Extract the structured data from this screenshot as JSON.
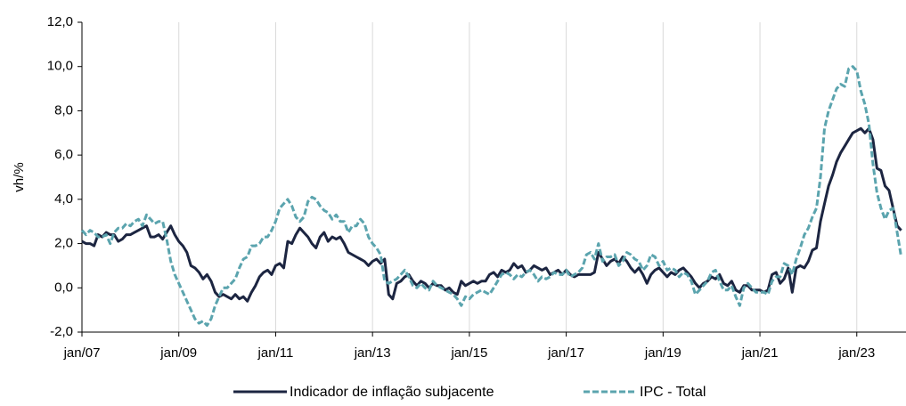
{
  "chart_data": {
    "type": "line",
    "y_label": "vh/%",
    "categories": [
      "jan/07",
      null,
      null,
      null,
      null,
      null,
      null,
      null,
      null,
      null,
      null,
      null,
      null,
      null,
      null,
      null,
      null,
      null,
      null,
      null,
      null,
      null,
      null,
      null,
      "jan/09",
      null,
      null,
      null,
      null,
      null,
      null,
      null,
      null,
      null,
      null,
      null,
      null,
      null,
      null,
      null,
      null,
      null,
      null,
      null,
      null,
      null,
      null,
      null,
      "jan/11",
      null,
      null,
      null,
      null,
      null,
      null,
      null,
      null,
      null,
      null,
      null,
      null,
      null,
      null,
      null,
      null,
      null,
      null,
      null,
      null,
      null,
      null,
      null,
      "jan/13",
      null,
      null,
      null,
      null,
      null,
      null,
      null,
      null,
      null,
      null,
      null,
      null,
      null,
      null,
      null,
      null,
      null,
      null,
      null,
      null,
      null,
      null,
      null,
      "jan/15",
      null,
      null,
      null,
      null,
      null,
      null,
      null,
      null,
      null,
      null,
      null,
      null,
      null,
      null,
      null,
      null,
      null,
      null,
      null,
      null,
      null,
      null,
      null,
      "jan/17",
      null,
      null,
      null,
      null,
      null,
      null,
      null,
      null,
      null,
      null,
      null,
      null,
      null,
      null,
      null,
      null,
      null,
      null,
      null,
      null,
      null,
      null,
      null,
      "jan/19",
      null,
      null,
      null,
      null,
      null,
      null,
      null,
      null,
      null,
      null,
      null,
      null,
      null,
      null,
      null,
      null,
      null,
      null,
      null,
      null,
      null,
      null,
      null,
      "jan/21",
      null,
      null,
      null,
      null,
      null,
      null,
      null,
      null,
      null,
      null,
      null,
      null,
      null,
      null,
      null,
      null,
      null,
      null,
      null,
      null,
      null,
      null,
      null,
      "jan/23",
      null,
      null,
      null,
      null,
      null,
      null,
      null,
      null,
      null,
      null,
      null
    ],
    "series": [
      {
        "name": "Indicador de inflação subjacente",
        "color": "#1c2541",
        "dash": false,
        "values": [
          2.1,
          2.0,
          2.0,
          1.9,
          2.4,
          2.3,
          2.5,
          2.4,
          2.4,
          2.1,
          2.2,
          2.4,
          2.4,
          2.5,
          2.6,
          2.7,
          2.8,
          2.3,
          2.3,
          2.4,
          2.2,
          2.5,
          2.8,
          2.4,
          2.1,
          1.9,
          1.6,
          1.0,
          0.9,
          0.7,
          0.4,
          0.6,
          0.3,
          -0.2,
          -0.4,
          -0.3,
          -0.4,
          -0.5,
          -0.3,
          -0.5,
          -0.4,
          -0.6,
          -0.2,
          0.1,
          0.5,
          0.7,
          0.8,
          0.6,
          1.0,
          1.1,
          0.9,
          2.1,
          2.0,
          2.4,
          2.7,
          2.5,
          2.3,
          2.0,
          1.8,
          2.3,
          2.5,
          2.1,
          2.3,
          2.2,
          2.3,
          2.0,
          1.6,
          1.5,
          1.4,
          1.3,
          1.2,
          1.0,
          1.2,
          1.3,
          1.1,
          1.3,
          -0.3,
          -0.5,
          0.2,
          0.3,
          0.5,
          0.6,
          0.3,
          0.1,
          0.3,
          0.2,
          0.0,
          0.2,
          0.1,
          0.1,
          -0.1,
          0.0,
          -0.2,
          -0.3,
          0.3,
          0.1,
          0.2,
          0.3,
          0.2,
          0.3,
          0.3,
          0.6,
          0.7,
          0.5,
          0.8,
          0.7,
          0.8,
          1.1,
          0.9,
          1.0,
          0.7,
          0.8,
          1.0,
          0.9,
          0.8,
          0.9,
          0.6,
          0.7,
          0.8,
          0.6,
          0.8,
          0.6,
          0.5,
          0.6,
          0.6,
          0.6,
          0.6,
          0.7,
          1.6,
          1.3,
          1.0,
          1.2,
          1.3,
          1.1,
          1.4,
          1.2,
          0.9,
          0.7,
          0.9,
          0.6,
          0.2,
          0.6,
          0.8,
          0.9,
          0.7,
          0.5,
          0.7,
          0.6,
          0.8,
          0.9,
          0.7,
          0.5,
          0.2,
          0.0,
          0.2,
          0.3,
          0.5,
          0.4,
          0.6,
          0.2,
          0.1,
          0.3,
          -0.1,
          -0.2,
          0.1,
          0.1,
          -0.1,
          -0.1,
          -0.1,
          -0.2,
          -0.1,
          0.6,
          0.7,
          0.2,
          0.4,
          0.9,
          -0.2,
          0.9,
          1.0,
          0.9,
          1.2,
          1.7,
          1.8,
          3.0,
          3.8,
          4.6,
          5.1,
          5.7,
          6.1,
          6.4,
          6.7,
          7.0,
          7.1,
          7.2,
          7.0,
          7.2,
          6.7,
          5.4,
          5.3,
          4.6,
          4.4,
          3.6,
          2.8,
          2.6
        ]
      },
      {
        "name": "IPC - Total",
        "color": "#5ba4ae",
        "dash": true,
        "values": [
          2.6,
          2.4,
          2.6,
          2.5,
          2.3,
          2.3,
          2.4,
          2.0,
          2.5,
          2.7,
          2.7,
          2.9,
          2.8,
          3.0,
          3.1,
          2.8,
          3.3,
          3.1,
          2.9,
          3.0,
          3.0,
          2.2,
          1.2,
          0.6,
          0.2,
          -0.2,
          -0.6,
          -1.0,
          -1.4,
          -1.6,
          -1.5,
          -1.7,
          -1.4,
          -0.8,
          -0.4,
          0.0,
          0.0,
          0.2,
          0.4,
          0.9,
          1.3,
          1.4,
          1.9,
          1.9,
          2.0,
          2.3,
          2.3,
          2.6,
          3.0,
          3.6,
          3.8,
          4.0,
          3.7,
          3.2,
          3.0,
          3.2,
          3.9,
          4.1,
          4.0,
          3.7,
          3.5,
          3.4,
          3.1,
          3.3,
          3.0,
          3.0,
          2.5,
          2.8,
          2.8,
          3.1,
          2.9,
          2.3,
          2.0,
          1.8,
          1.5,
          0.3,
          0.2,
          0.3,
          0.4,
          0.6,
          0.8,
          0.5,
          0.1,
          0.0,
          0.2,
          0.0,
          -0.1,
          0.3,
          0.1,
          0.0,
          -0.1,
          -0.2,
          -0.3,
          -0.5,
          -0.8,
          -0.4,
          -0.5,
          -0.3,
          -0.2,
          -0.1,
          -0.2,
          -0.3,
          0.0,
          0.3,
          0.6,
          0.7,
          0.6,
          0.4,
          0.6,
          0.5,
          0.7,
          0.8,
          0.6,
          0.3,
          0.5,
          0.4,
          0.5,
          0.7,
          0.6,
          0.6,
          0.8,
          0.5,
          0.6,
          0.7,
          0.9,
          1.5,
          1.6,
          1.3,
          2.0,
          1.2,
          1.4,
          1.4,
          1.5,
          1.0,
          1.2,
          1.6,
          1.5,
          1.3,
          1.2,
          0.8,
          1.0,
          1.5,
          1.4,
          1.0,
          1.2,
          0.8,
          0.9,
          0.8,
          0.5,
          0.7,
          0.6,
          0.3,
          -0.3,
          -0.1,
          0.1,
          0.3,
          0.7,
          0.8,
          0.3,
          -0.1,
          -0.1,
          0.1,
          -0.4,
          -0.8,
          0.0,
          0.2,
          0.0,
          -0.2,
          -0.2,
          -0.2,
          -0.3,
          0.3,
          0.5,
          0.5,
          1.1,
          1.0,
          0.6,
          1.3,
          1.8,
          2.4,
          2.7,
          3.2,
          3.6,
          5.0,
          7.2,
          8.0,
          8.5,
          9.0,
          9.2,
          9.1,
          9.9,
          10.0,
          9.8,
          8.9,
          8.3,
          7.4,
          5.6,
          4.3,
          3.6,
          3.1,
          3.5,
          3.6,
          2.5,
          1.4
        ]
      }
    ],
    "ylim": [
      -2,
      12
    ],
    "yticks": [
      {
        "value": -2,
        "label": "-2,0"
      },
      {
        "value": 0,
        "label": "0,0"
      },
      {
        "value": 2,
        "label": "2,0"
      },
      {
        "value": 4,
        "label": "4,0"
      },
      {
        "value": 6,
        "label": "6,0"
      },
      {
        "value": 8,
        "label": "8,0"
      },
      {
        "value": 10,
        "label": "10,0"
      },
      {
        "value": 12,
        "label": "12,0"
      }
    ],
    "grid": "x",
    "legend": "bottom"
  }
}
